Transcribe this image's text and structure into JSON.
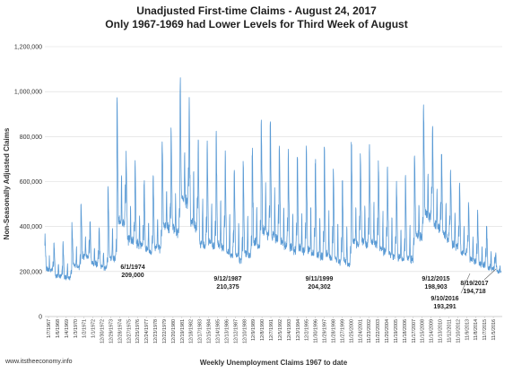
{
  "chart_data": {
    "type": "line",
    "title": "Unadjusted First-time Claims - August 24, 2017",
    "subtitle": "Only 1967-1969 had Lower Levels for Third Week of August",
    "xlabel": "Weekly Unemployment Claims 1967 to date",
    "ylabel": "Non-Seasonally Adjusted Claims",
    "ylim": [
      0,
      1200000
    ],
    "yticks": [
      "0",
      "200,000",
      "400,000",
      "600,000",
      "800,000",
      "1,000,000",
      "1,200,000"
    ],
    "xticks": [
      "1/7/1967",
      "1/6/1968",
      "1/4/1969",
      "1/3/1970",
      "1/2/1971",
      "1/1/1972",
      "12/30/1972",
      "12/29/1973",
      "12/28/1974",
      "12/27/1975",
      "12/25/1976",
      "12/24/1977",
      "12/23/1978",
      "12/22/1979",
      "12/20/1980",
      "12/19/1981",
      "12/18/1982",
      "12/17/1983",
      "12/15/1984",
      "12/14/1985",
      "12/13/1986",
      "12/12/1987",
      "12/10/1988",
      "12/9/1989",
      "12/8/1990",
      "12/7/1991",
      "12/5/1992",
      "12/4/1993",
      "12/3/1994",
      "12/2/1995",
      "11/30/1996",
      "11/29/1997",
      "11/28/1998",
      "11/27/1999",
      "11/25/2000",
      "11/24/2001",
      "11/23/2002",
      "11/22/2003",
      "11/20/2004",
      "11/19/2005",
      "11/18/2006",
      "11/17/2007",
      "11/15/2008",
      "11/14/2009",
      "11/13/2010",
      "11/12/2011",
      "11/10/2012",
      "11/9/2013",
      "11/8/2014",
      "11/7/2015",
      "11/5/2016"
    ],
    "grid": true,
    "legend": "none",
    "series": [
      {
        "color": "#5b9bd5",
        "annual_points": [
          {
            "year": 1967,
            "base": 200000,
            "peak": 350000
          },
          {
            "year": 1968,
            "base": 175000,
            "peak": 330000
          },
          {
            "year": 1969,
            "base": 165000,
            "peak": 325000
          },
          {
            "year": 1970,
            "base": 215000,
            "peak": 410000
          },
          {
            "year": 1971,
            "base": 255000,
            "peak": 500000
          },
          {
            "year": 1972,
            "base": 225000,
            "peak": 420000
          },
          {
            "year": 1973,
            "base": 210000,
            "peak": 390000
          },
          {
            "year": 1974,
            "base": 245000,
            "peak": 585000
          },
          {
            "year": 1975,
            "base": 390000,
            "peak": 970000
          },
          {
            "year": 1976,
            "base": 320000,
            "peak": 700000
          },
          {
            "year": 1977,
            "base": 300000,
            "peak": 680000
          },
          {
            "year": 1978,
            "base": 275000,
            "peak": 620000
          },
          {
            "year": 1979,
            "base": 290000,
            "peak": 640000
          },
          {
            "year": 1980,
            "base": 380000,
            "peak": 805000
          },
          {
            "year": 1981,
            "base": 360000,
            "peak": 815000
          },
          {
            "year": 1982,
            "base": 490000,
            "peak": 1075000
          },
          {
            "year": 1983,
            "base": 380000,
            "peak": 975000
          },
          {
            "year": 1984,
            "base": 300000,
            "peak": 790000
          },
          {
            "year": 1985,
            "base": 300000,
            "peak": 770000
          },
          {
            "year": 1986,
            "base": 290000,
            "peak": 800000
          },
          {
            "year": 1987,
            "base": 255000,
            "peak": 700000
          },
          {
            "year": 1988,
            "base": 240000,
            "peak": 660000
          },
          {
            "year": 1989,
            "base": 260000,
            "peak": 670000
          },
          {
            "year": 1990,
            "base": 300000,
            "peak": 760000
          },
          {
            "year": 1991,
            "base": 350000,
            "peak": 870000
          },
          {
            "year": 1992,
            "base": 330000,
            "peak": 880000
          },
          {
            "year": 1993,
            "base": 300000,
            "peak": 780000
          },
          {
            "year": 1994,
            "base": 280000,
            "peak": 700000
          },
          {
            "year": 1995,
            "base": 275000,
            "peak": 720000
          },
          {
            "year": 1996,
            "base": 265000,
            "peak": 760000
          },
          {
            "year": 1997,
            "base": 250000,
            "peak": 700000
          },
          {
            "year": 1998,
            "base": 245000,
            "peak": 740000
          },
          {
            "year": 1999,
            "base": 225000,
            "peak": 680000
          },
          {
            "year": 2000,
            "base": 220000,
            "peak": 610000
          },
          {
            "year": 2001,
            "base": 305000,
            "peak": 770000
          },
          {
            "year": 2002,
            "base": 310000,
            "peak": 720000
          },
          {
            "year": 2003,
            "base": 310000,
            "peak": 720000
          },
          {
            "year": 2004,
            "base": 275000,
            "peak": 690000
          },
          {
            "year": 2005,
            "base": 255000,
            "peak": 660000
          },
          {
            "year": 2006,
            "base": 240000,
            "peak": 600000
          },
          {
            "year": 2007,
            "base": 240000,
            "peak": 620000
          },
          {
            "year": 2008,
            "base": 340000,
            "peak": 720000
          },
          {
            "year": 2009,
            "base": 430000,
            "peak": 955000
          },
          {
            "year": 2010,
            "base": 380000,
            "peak": 825000
          },
          {
            "year": 2011,
            "base": 340000,
            "peak": 740000
          },
          {
            "year": 2012,
            "base": 300000,
            "peak": 660000
          },
          {
            "year": 2013,
            "base": 270000,
            "peak": 590000
          },
          {
            "year": 2014,
            "base": 240000,
            "peak": 500000
          },
          {
            "year": 2015,
            "base": 220000,
            "peak": 465000
          },
          {
            "year": 2016,
            "base": 205000,
            "peak": 410000
          },
          {
            "year": 2017,
            "base": 195000,
            "peak": 285000
          }
        ]
      }
    ],
    "annotations": [
      {
        "date": "6/1/1974",
        "value": "209,000"
      },
      {
        "date": "9/12/1987",
        "value": "210,375"
      },
      {
        "date": "9/11/1999",
        "value": "204,302"
      },
      {
        "date": "9/12/2015",
        "value": "198,903"
      },
      {
        "date": "9/10/2016",
        "value": "193,291"
      },
      {
        "date": "8/19/2017",
        "value": "194,718"
      }
    ],
    "source": "www.itstheeconomy.info"
  }
}
